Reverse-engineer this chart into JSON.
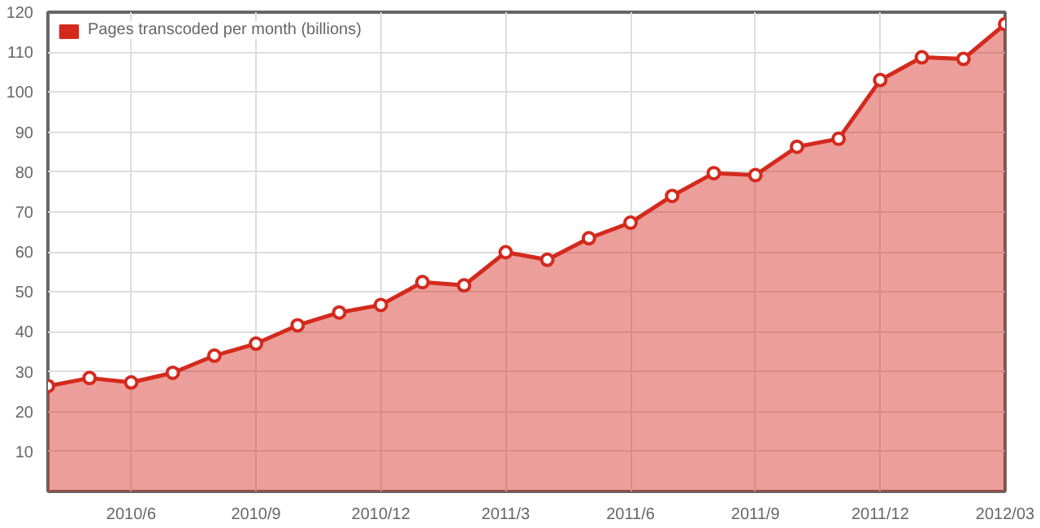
{
  "chart_data": {
    "type": "area",
    "x": [
      "2010-04",
      "2010-05",
      "2010-06",
      "2010-07",
      "2010-08",
      "2010-09",
      "2010-10",
      "2010-11",
      "2010-12",
      "2011-01",
      "2011-02",
      "2011-03",
      "2011-04",
      "2011-05",
      "2011-06",
      "2011-07",
      "2011-08",
      "2011-09",
      "2011-10",
      "2011-11",
      "2011-12",
      "2012-01",
      "2012-02",
      "2012-03"
    ],
    "series": [
      {
        "name": "Pages transcoded per month (billions)",
        "color": "#d42a1e",
        "values": [
          26.4,
          28.4,
          27.3,
          29.7,
          34,
          37,
          41.6,
          44.8,
          46.7,
          52.4,
          51.6,
          59.9,
          58,
          63.4,
          67.3,
          74,
          79.7,
          79.2,
          86.3,
          88.3,
          103,
          108.7,
          108.3,
          117
        ]
      }
    ],
    "xlim": [
      "2010-04",
      "2012-03"
    ],
    "xticks": [
      {
        "value": "2010-06",
        "label": "2010/6"
      },
      {
        "value": "2010-09",
        "label": "2010/9"
      },
      {
        "value": "2010-12",
        "label": "2010/12"
      },
      {
        "value": "2011-03",
        "label": "2011/3"
      },
      {
        "value": "2011-06",
        "label": "2011/6"
      },
      {
        "value": "2011-09",
        "label": "2011/9"
      },
      {
        "value": "2011-12",
        "label": "2011/12"
      },
      {
        "value": "2012-03",
        "label": "2012/03"
      }
    ],
    "ylim": [
      0,
      120
    ],
    "yticks": [
      10,
      20,
      30,
      40,
      50,
      60,
      70,
      80,
      90,
      100,
      110,
      120
    ],
    "grid": true,
    "legend": "top left",
    "marker": "circle",
    "line_style": "solid"
  }
}
